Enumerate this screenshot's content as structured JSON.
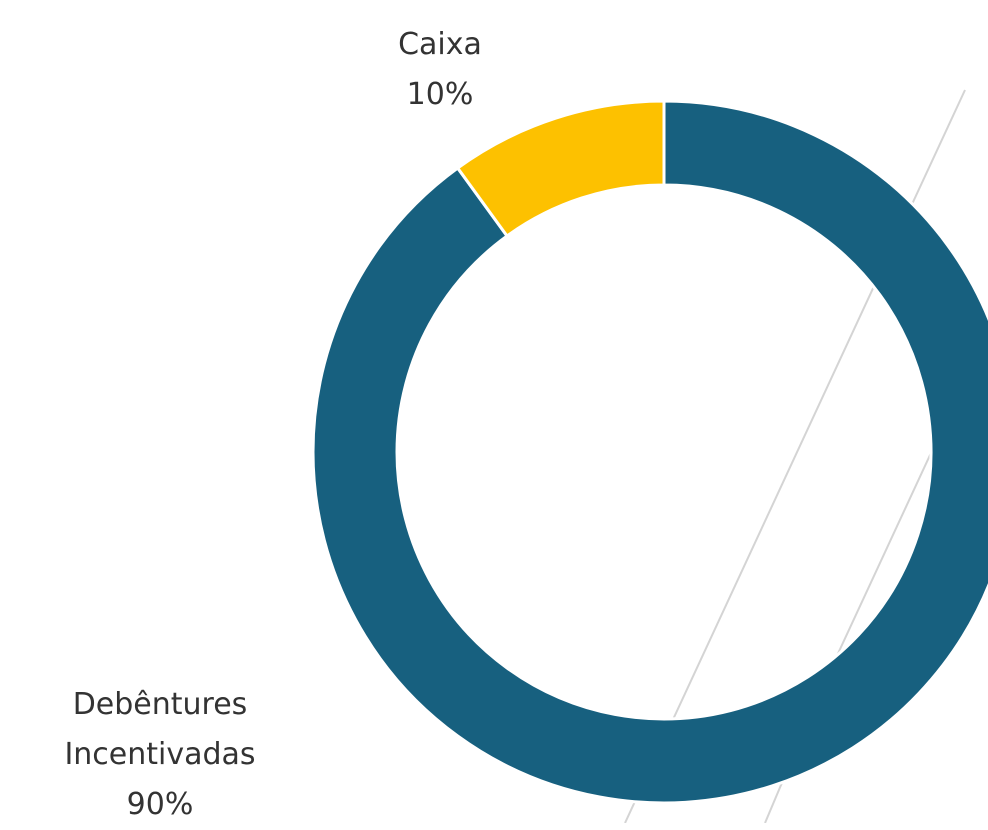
{
  "chart_data": {
    "type": "donut",
    "categories": [
      "Debêntures Incentivadas",
      "Caixa"
    ],
    "values": [
      90,
      10
    ],
    "value_labels": [
      "90%",
      "10%"
    ],
    "colors": [
      "#17607f",
      "#fdc100"
    ]
  }
}
